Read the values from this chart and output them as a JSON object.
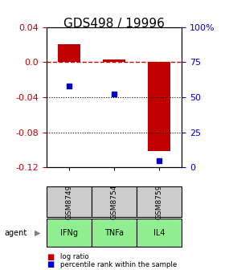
{
  "title": "GDS498 / 19996",
  "samples": [
    "GSM8749",
    "GSM8754",
    "GSM8759"
  ],
  "agents": [
    "IFNg",
    "TNFa",
    "IL4"
  ],
  "log_ratios": [
    0.02,
    0.003,
    -0.101
  ],
  "percentiles": [
    58,
    52,
    5
  ],
  "ylim_left": [
    -0.12,
    0.04
  ],
  "ylim_right": [
    0,
    100
  ],
  "bar_color": "#C00000",
  "dot_color": "#0000CC",
  "agent_bg": "#90EE90",
  "sample_bg": "#CCCCCC",
  "dashed_color": "#C00000",
  "title_fontsize": 11,
  "tick_fontsize": 8,
  "legend_fontsize": 7,
  "left_ticks": [
    0.04,
    0.0,
    -0.04,
    -0.08,
    -0.12
  ],
  "right_ticks": [
    100,
    75,
    50,
    25,
    0
  ],
  "right_tick_labels": [
    "100%",
    "75",
    "50",
    "25",
    "0"
  ]
}
